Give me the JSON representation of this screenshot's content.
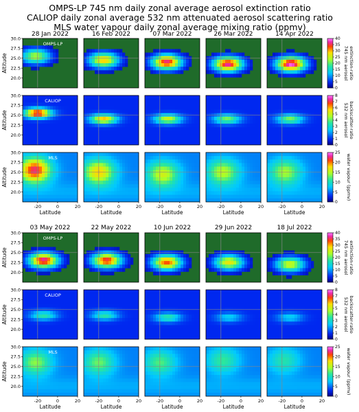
{
  "titles": [
    "OMPS-LP 745 nm daily zonal average aerosol extinction ratio",
    "CALIOP daily zonal average 532 nm attenuated aerosol scattering ratio",
    "MLS water vapour daily zonal average mixing ratio (ppmv)"
  ],
  "colors": {
    "low": "#14148c",
    "high": "#ff00ff",
    "ref_line": "#888888",
    "background": "#ffffff"
  },
  "chart_data": {
    "type": "heatmap",
    "dates": [
      [
        "28 Jan 2022",
        "16 Feb 2022",
        "07 Mar 2022",
        "26 Mar 2022",
        "14 Apr 2022"
      ],
      [
        "03 May 2022",
        "22 May 2022",
        "10 Jun 2022",
        "29 Jun 2022",
        "18 Jul 2022"
      ]
    ],
    "rows": [
      {
        "instrument": "OMPS-LP",
        "colorbar_label": [
          "745 nm aerosol",
          "extinction-ratio"
        ],
        "vmin": 0,
        "vmax": 40,
        "ticks": [
          0,
          5,
          10,
          15,
          20,
          25,
          30,
          35,
          40
        ]
      },
      {
        "instrument": "CALIOP",
        "colorbar_label": [
          "532 nm aerosol",
          "backscatter-ratio"
        ],
        "vmin": 0,
        "vmax": 8,
        "ticks": [
          0,
          1,
          2,
          3,
          4,
          5,
          6,
          7,
          8
        ]
      },
      {
        "instrument": "MLS",
        "colorbar_label": [
          "water vapour (ppmv)"
        ],
        "vmin": 0,
        "vmax": 25,
        "ticks": [
          0,
          5,
          10,
          15,
          20,
          25
        ]
      }
    ],
    "ylabel": "Altitude",
    "xlabel": "Latitude",
    "ylim": [
      17.5,
      30.0
    ],
    "xlim": [
      -35,
      20
    ],
    "yticks": [
      "30.0",
      "27.5",
      "25.0",
      "22.5",
      "20.0"
    ],
    "xticks": [
      "-20",
      "0",
      "20"
    ],
    "plume_peaks": {
      "OMPS-LP": [
        {
          "date": "28 Jan 2022",
          "lat": -22,
          "alt": 25.5,
          "peak": 22
        },
        {
          "date": "16 Feb 2022",
          "lat": -15,
          "alt": 24.5,
          "peak": 28
        },
        {
          "date": "07 Mar 2022",
          "lat": -13,
          "alt": 24.0,
          "peak": 35
        },
        {
          "date": "26 Mar 2022",
          "lat": -13,
          "alt": 23.5,
          "peak": 36
        },
        {
          "date": "14 Apr 2022",
          "lat": -11,
          "alt": 23.5,
          "peak": 38
        },
        {
          "date": "03 May 2022",
          "lat": -14,
          "alt": 23.0,
          "peak": 36
        },
        {
          "date": "22 May 2022",
          "lat": -12,
          "alt": 23.0,
          "peak": 34
        },
        {
          "date": "10 Jun 2022",
          "lat": -13,
          "alt": 22.5,
          "peak": 32
        },
        {
          "date": "29 Jun 2022",
          "lat": -12,
          "alt": 22.5,
          "peak": 26
        },
        {
          "date": "18 Jul 2022",
          "lat": -12,
          "alt": 22.0,
          "peak": 24
        }
      ],
      "CALIOP": [
        {
          "date": "28 Jan 2022",
          "lat": -20,
          "alt": 25.5,
          "peak": 8
        },
        {
          "date": "16 Feb 2022",
          "lat": -15,
          "alt": 24.0,
          "peak": 6
        },
        {
          "date": "07 Mar 2022",
          "lat": -12,
          "alt": 24.0,
          "peak": 5
        },
        {
          "date": "26 Mar 2022",
          "lat": -14,
          "alt": 24.0,
          "peak": 4
        },
        {
          "date": "14 Apr 2022",
          "lat": -12,
          "alt": 24.0,
          "peak": 4
        },
        {
          "date": "03 May 2022",
          "lat": -14,
          "alt": 23.5,
          "peak": 3
        },
        {
          "date": "22 May 2022",
          "lat": -14,
          "alt": 23.5,
          "peak": 3
        },
        {
          "date": "10 Jun 2022",
          "lat": -12,
          "alt": 23.0,
          "peak": 3
        },
        {
          "date": "29 Jun 2022",
          "lat": -12,
          "alt": 23.0,
          "peak": 2
        },
        {
          "date": "18 Jul 2022",
          "lat": -12,
          "alt": 23.0,
          "peak": 2
        }
      ],
      "MLS": [
        {
          "date": "28 Jan 2022",
          "lat": -23,
          "alt": 25.5,
          "peak": 23
        },
        {
          "date": "16 Feb 2022",
          "lat": -20,
          "alt": 25.0,
          "peak": 17
        },
        {
          "date": "07 Mar 2022",
          "lat": -17,
          "alt": 24.5,
          "peak": 14
        },
        {
          "date": "26 Mar 2022",
          "lat": -18,
          "alt": 25.0,
          "peak": 13
        },
        {
          "date": "14 Apr 2022",
          "lat": -17,
          "alt": 25.0,
          "peak": 12
        },
        {
          "date": "03 May 2022",
          "lat": -22,
          "alt": 26.0,
          "peak": 11
        },
        {
          "date": "22 May 2022",
          "lat": -20,
          "alt": 26.0,
          "peak": 10
        },
        {
          "date": "10 Jun 2022",
          "lat": -20,
          "alt": 26.0,
          "peak": 9
        },
        {
          "date": "29 Jun 2022",
          "lat": -18,
          "alt": 26.5,
          "peak": 8
        },
        {
          "date": "18 Jul 2022",
          "lat": -18,
          "alt": 26.5,
          "peak": 7
        }
      ]
    }
  }
}
